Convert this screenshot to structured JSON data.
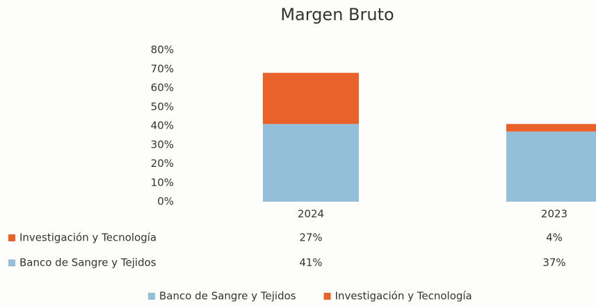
{
  "chart_data": {
    "type": "stacked_bar",
    "title": "Margen Bruto",
    "categories": [
      "2024",
      "2023"
    ],
    "series": [
      {
        "name": "Banco de Sangre y Tejidos",
        "color": "#93bfd9",
        "values": [
          41,
          37
        ],
        "value_labels": [
          "41%",
          "37%"
        ]
      },
      {
        "name": "Investigación y Tecnología",
        "color": "#e8622a",
        "values": [
          27,
          4
        ],
        "value_labels": [
          "27%",
          "4%"
        ]
      }
    ],
    "ylim": [
      0,
      80
    ],
    "yticks": [
      {
        "value": 0,
        "label": "0%"
      },
      {
        "value": 10,
        "label": "10%"
      },
      {
        "value": 20,
        "label": "20%"
      },
      {
        "value": 30,
        "label": "30%"
      },
      {
        "value": 40,
        "label": "40%"
      },
      {
        "value": 50,
        "label": "50%"
      },
      {
        "value": 60,
        "label": "60%"
      },
      {
        "value": 70,
        "label": "70%"
      },
      {
        "value": 80,
        "label": "80%"
      }
    ],
    "grid": false,
    "legend": "bottom"
  }
}
